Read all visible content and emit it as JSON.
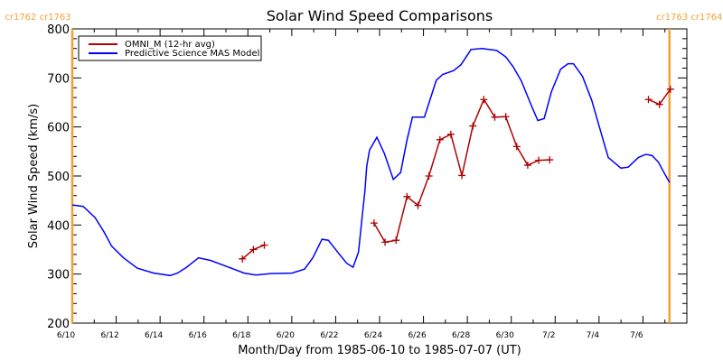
{
  "chart_data": {
    "type": "line",
    "title": "Solar Wind Speed Comparisons",
    "xlabel": "Month/Day from 1985-06-10 to 1985-07-07 (UT)",
    "ylabel": "Solar Wind Speed (km/s)",
    "xlim": [
      "1985-06-10 00:00",
      "1985-07-08 00:00"
    ],
    "ylim": [
      200,
      800
    ],
    "yticks": [
      200,
      300,
      400,
      500,
      600,
      700,
      800
    ],
    "xtick_labels": [
      "6/10",
      "6/12",
      "6/14",
      "6/16",
      "6/18",
      "6/20",
      "6/22",
      "6/24",
      "6/26",
      "6/28",
      "6/30",
      "7/2",
      "7/4",
      "7/6"
    ],
    "xtick_dates": [
      "1985-06-10",
      "1985-06-12",
      "1985-06-14",
      "1985-06-16",
      "1985-06-18",
      "1985-06-20",
      "1985-06-22",
      "1985-06-24",
      "1985-06-26",
      "1985-06-28",
      "1985-06-30",
      "1985-07-02",
      "1985-07-04",
      "1985-07-06"
    ],
    "grid": false,
    "legend_position": "top-left",
    "series": [
      {
        "name": "OMNI_M (12-hr avg)",
        "color": "#b00000",
        "marker": "plus",
        "segments": [
          [
            [
              "1985-06-17 18:00",
              331
            ],
            [
              "1985-06-18 06:00",
              350
            ],
            [
              "1985-06-18 18:00",
              359
            ]
          ],
          [
            [
              "1985-06-23 18:00",
              404
            ],
            [
              "1985-06-24 06:00",
              365
            ],
            [
              "1985-06-24 18:00",
              369
            ],
            [
              "1985-06-25 06:00",
              458
            ],
            [
              "1985-06-25 18:00",
              440
            ],
            [
              "1985-06-26 06:00",
              500
            ],
            [
              "1985-06-26 18:00",
              574
            ],
            [
              "1985-06-27 06:00",
              585
            ],
            [
              "1985-06-27 18:00",
              501
            ],
            [
              "1985-06-28 06:00",
              602
            ],
            [
              "1985-06-28 18:00",
              656
            ],
            [
              "1985-06-29 06:00",
              620
            ],
            [
              "1985-06-29 18:00",
              621
            ],
            [
              "1985-06-30 06:00",
              560
            ],
            [
              "1985-06-30 18:00",
              522
            ],
            [
              "1985-07-01 06:00",
              532
            ],
            [
              "1985-07-01 18:00",
              533
            ]
          ],
          [
            [
              "1985-07-06 06:00",
              656
            ],
            [
              "1985-07-06 18:00",
              646
            ],
            [
              "1985-07-07 06:00",
              677
            ]
          ]
        ]
      },
      {
        "name": "Predictive Science MAS Model",
        "color": "#0000ff",
        "marker": "none",
        "segments": [
          [
            [
              "1985-06-10 00:00",
              441
            ],
            [
              "1985-06-10 12:00",
              438
            ],
            [
              "1985-06-11 01:00",
              415
            ],
            [
              "1985-06-11 11:00",
              385
            ],
            [
              "1985-06-11 19:00",
              357
            ],
            [
              "1985-06-12 08:00",
              333
            ],
            [
              "1985-06-12 23:00",
              312
            ],
            [
              "1985-06-13 17:00",
              302
            ],
            [
              "1985-06-14 11:00",
              297
            ],
            [
              "1985-06-14 19:00",
              302
            ],
            [
              "1985-06-15 05:00",
              314
            ],
            [
              "1985-06-15 18:00",
              333
            ],
            [
              "1985-06-16 07:00",
              328
            ],
            [
              "1985-06-17 03:00",
              314
            ],
            [
              "1985-06-17 20:00",
              302
            ],
            [
              "1985-06-18 09:00",
              298
            ],
            [
              "1985-06-19 01:00",
              301
            ],
            [
              "1985-06-20 00:00",
              302
            ],
            [
              "1985-06-20 14:00",
              310
            ],
            [
              "1985-06-20 23:00",
              333
            ],
            [
              "1985-06-21 09:00",
              371
            ],
            [
              "1985-06-21 16:00",
              369
            ],
            [
              "1985-06-22 02:00",
              345
            ],
            [
              "1985-06-22 12:00",
              322
            ],
            [
              "1985-06-22 19:00",
              314
            ],
            [
              "1985-06-23 01:00",
              345
            ],
            [
              "1985-06-23 05:00",
              418
            ],
            [
              "1985-06-23 08:00",
              470
            ],
            [
              "1985-06-23 10:00",
              520
            ],
            [
              "1985-06-23 13:00",
              553
            ],
            [
              "1985-06-23 21:00",
              579
            ],
            [
              "1985-06-24 05:00",
              547
            ],
            [
              "1985-06-24 15:00",
              493
            ],
            [
              "1985-06-24 23:00",
              507
            ],
            [
              "1985-06-25 06:00",
              574
            ],
            [
              "1985-06-25 12:00",
              620
            ],
            [
              "1985-06-26 01:00",
              620
            ],
            [
              "1985-06-26 14:00",
              695
            ],
            [
              "1985-06-26 21:00",
              707
            ],
            [
              "1985-06-27 09:00",
              715
            ],
            [
              "1985-06-27 17:00",
              727
            ],
            [
              "1985-06-28 04:00",
              758
            ],
            [
              "1985-06-28 16:00",
              760
            ],
            [
              "1985-06-29 08:00",
              756
            ],
            [
              "1985-06-29 18:00",
              743
            ],
            [
              "1985-06-30 02:00",
              723
            ],
            [
              "1985-06-30 11:00",
              694
            ],
            [
              "1985-06-30 21:00",
              648
            ],
            [
              "1985-07-01 05:00",
              613
            ],
            [
              "1985-07-01 12:00",
              617
            ],
            [
              "1985-07-01 20:00",
              672
            ],
            [
              "1985-07-02 06:00",
              718
            ],
            [
              "1985-07-02 14:00",
              729
            ],
            [
              "1985-07-02 20:00",
              729
            ],
            [
              "1985-07-03 06:00",
              703
            ],
            [
              "1985-07-03 16:00",
              654
            ],
            [
              "1985-07-04 00:00",
              602
            ],
            [
              "1985-07-04 10:00",
              538
            ],
            [
              "1985-07-05 00:00",
              516
            ],
            [
              "1985-07-05 08:00",
              518
            ],
            [
              "1985-07-05 19:00",
              538
            ],
            [
              "1985-07-06 03:00",
              544
            ],
            [
              "1985-07-06 10:00",
              542
            ],
            [
              "1985-07-06 17:00",
              528
            ],
            [
              "1985-07-06 23:00",
              507
            ],
            [
              "1985-07-07 05:00",
              487
            ]
          ]
        ]
      }
    ],
    "vertical_markers": [
      {
        "date": "1985-06-10 00:00",
        "label": "cr1762 cr1763",
        "color": "#f5a030"
      },
      {
        "date": "1985-07-07 05:00",
        "label": "cr1763 cr1764",
        "color": "#f5a030"
      }
    ]
  }
}
